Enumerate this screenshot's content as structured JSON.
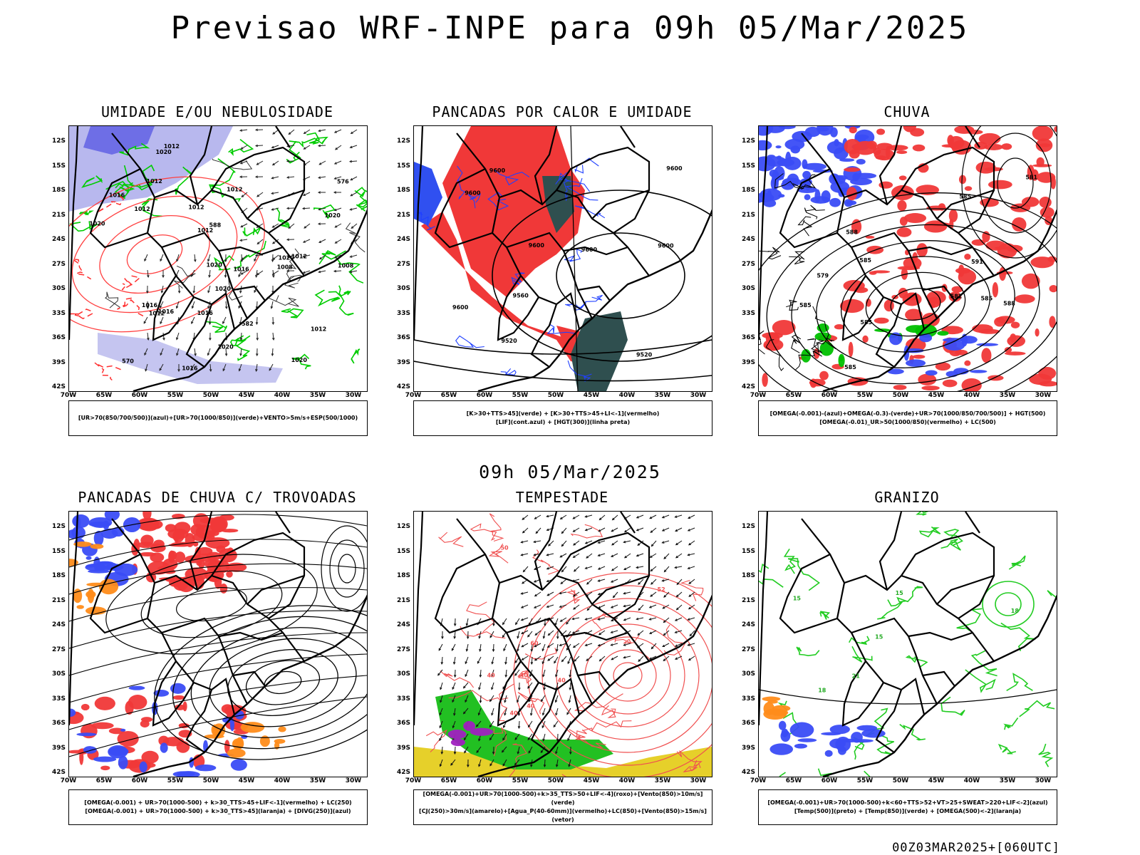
{
  "title": "Previsao WRF-INPE  para 09h 05/Mar/2025",
  "mid_title": "09h 05/Mar/2025",
  "footer": "00Z03MAR2025+[060UTC]",
  "lat_labels": [
    "12S",
    "15S",
    "18S",
    "21S",
    "24S",
    "27S",
    "30S",
    "33S",
    "36S",
    "39S",
    "42S"
  ],
  "lon_labels": [
    "70W",
    "65W",
    "60W",
    "55W",
    "50W",
    "45W",
    "40W",
    "35W",
    "30W"
  ],
  "panels": [
    {
      "title": "UMIDADE E/OU NEBULOSIDADE",
      "legend": [
        "[UR>70(850/700/500)](azul)+[UR>70(1000/850)](verde)+VENTO>5m/s+ESP(500/1000)"
      ],
      "labels": [
        "1012",
        "1016",
        "1012",
        "1020",
        "1016",
        "1012",
        "1020",
        "1016",
        "1012",
        "1008",
        "1012",
        "1020",
        "1020",
        "1012",
        "1020",
        "1020",
        "1012",
        "1020",
        "1016",
        "1016",
        "1008",
        "1012",
        "1012",
        "1016",
        "1020",
        "570",
        "576",
        "582",
        "588"
      ]
    },
    {
      "title": "PANCADAS POR CALOR E UMIDADE",
      "legend": [
        "[K>30+TTS>45](verde) + [K>30+TTS>45+LI<-1](vermelho)",
        "[LIF](cont.azul) + [HGT(300)](linha preta)"
      ],
      "labels": [
        "9600",
        "9600",
        "9600",
        "9520",
        "9600",
        "9600",
        "9600",
        "9520",
        "9560",
        "9600"
      ]
    },
    {
      "title": "CHUVA",
      "legend": [
        "[OMEGA(-0.001)-(azul)+OMEGA(-0.3)-(verde)+UR>70(1000/850/700/500)] + HGT(500)",
        "[OMEGA(-0.01)_UR>50(1000/850)(vermelho) + LC(500)"
      ],
      "labels": [
        "585",
        "582",
        "585",
        "585",
        "588",
        "585",
        "579",
        "581",
        "591",
        "585",
        "588",
        "585"
      ]
    },
    {
      "title": "PANCADAS DE CHUVA C/ TROVOADAS",
      "legend": [
        "[OMEGA(-0.001) + UR>70(1000-500) + k>30_TTS>45+LIF<-1](vermelho) + LC(250)",
        "[OMEGA(-0.001) + UR>70(1000-500) + k>30_TTS>45](laranja) + [DIVG(250)](azul)"
      ],
      "labels": []
    },
    {
      "title": "TEMPESTADE",
      "legend": [
        "[OMEGA(-0.001)+UR>70(1000-500)+k>35_TTS>50+LIF<-4](roxo)+[Vento(850)>10m/s](verde)",
        "[CJ(250)>30m/s](amarelo)+[Agua_P(40-60mm)](vermelho)+LC(850)+[Vento(850)>15m/s](vetor)"
      ],
      "labels": [
        "40",
        "50",
        "40",
        "60",
        "40",
        "52",
        "40",
        "40"
      ]
    },
    {
      "title": "GRANIZO",
      "legend": [
        "[OMEGA(-0.001)+UR>70(1000-500)+k<60+TTS>52+VT>25+SWEAT>220+LIF<-2](azul)",
        "[Temp(500)](preto) + [Temp(850)](verde) + [OMEGA(500)<-2](laranja)"
      ],
      "labels": [
        "15",
        "15",
        "18",
        "18",
        "21",
        "15"
      ]
    }
  ]
}
